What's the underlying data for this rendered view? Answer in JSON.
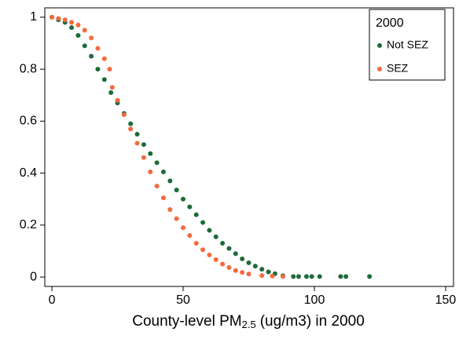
{
  "chart_data": {
    "type": "scatter",
    "x_label": {
      "prefix": "County-level PM",
      "subscript": "2.5",
      "suffix": "(ug/m3) in 2000"
    },
    "legend_title": "2000",
    "legend": "top-right",
    "xlim": [
      -2.7,
      153
    ],
    "ylim": [
      -0.036,
      1.036
    ],
    "xticks": [
      0,
      50,
      100,
      150
    ],
    "yticks": [
      0,
      0.2,
      0.4,
      0.6,
      0.8,
      1
    ],
    "series": [
      {
        "name": "Not SEZ",
        "color": "#1d6b3a",
        "x": [
          0,
          2.5,
          5,
          7.5,
          10,
          12.5,
          15,
          17.5,
          20,
          22.5,
          25,
          27.5,
          30,
          32.5,
          35,
          37.5,
          40,
          42.5,
          45,
          47.5,
          50,
          52.5,
          55,
          57.5,
          60,
          62.5,
          65,
          67.5,
          70,
          72.5,
          75,
          77.5,
          80,
          82.5,
          85,
          88,
          92,
          94,
          97,
          99,
          102,
          110,
          112,
          121
        ],
        "values": [
          1,
          0.99,
          0.98,
          0.96,
          0.93,
          0.89,
          0.85,
          0.8,
          0.76,
          0.71,
          0.67,
          0.63,
          0.59,
          0.55,
          0.51,
          0.475,
          0.44,
          0.405,
          0.37,
          0.335,
          0.3,
          0.27,
          0.24,
          0.21,
          0.18,
          0.155,
          0.13,
          0.11,
          0.09,
          0.07,
          0.055,
          0.042,
          0.03,
          0.02,
          0.013,
          0.005,
          0.002,
          0.002,
          0.002,
          0.002,
          0.002,
          0.002,
          0.002,
          0.002
        ]
      },
      {
        "name": "SEZ",
        "color": "#f26a3f",
        "x": [
          0,
          2.5,
          5,
          7.5,
          10,
          12.5,
          15,
          17.5,
          20,
          22,
          23,
          25,
          27.5,
          30,
          32.5,
          35,
          37.5,
          40,
          42.5,
          45,
          47.5,
          50,
          52.5,
          55,
          57.5,
          60,
          62.5,
          65,
          67.5,
          70,
          72.5,
          75,
          80,
          84,
          88
        ],
        "values": [
          1,
          0.995,
          0.99,
          0.98,
          0.97,
          0.95,
          0.92,
          0.88,
          0.84,
          0.8,
          0.73,
          0.68,
          0.625,
          0.57,
          0.515,
          0.46,
          0.405,
          0.35,
          0.305,
          0.26,
          0.225,
          0.19,
          0.16,
          0.13,
          0.105,
          0.085,
          0.067,
          0.05,
          0.037,
          0.025,
          0.018,
          0.012,
          0.006,
          0.004,
          0.002
        ]
      }
    ]
  }
}
